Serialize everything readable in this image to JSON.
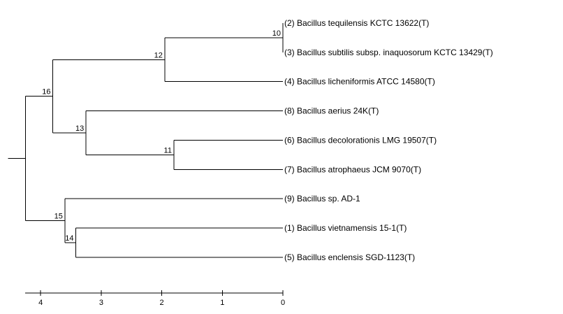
{
  "tree": {
    "leaves": [
      {
        "id": "2",
        "label": "(2) Bacillus tequilensis KCTC 13622(T)"
      },
      {
        "id": "3",
        "label": "(3) Bacillus subtilis subsp. inaquosorum KCTC 13429(T)"
      },
      {
        "id": "4",
        "label": "(4) Bacillus licheniformis ATCC 14580(T)"
      },
      {
        "id": "8",
        "label": "(8) Bacillus aerius 24K(T)"
      },
      {
        "id": "6",
        "label": "(6) Bacillus decolorationis LMG 19507(T)"
      },
      {
        "id": "7",
        "label": "(7) Bacillus atrophaeus JCM 9070(T)"
      },
      {
        "id": "9",
        "label": "(9) Bacillus sp. AD-1"
      },
      {
        "id": "1",
        "label": "(1) Bacillus vietnamensis 15-1(T)"
      },
      {
        "id": "5",
        "label": "(5) Bacillus enclensis SGD-1123(T)"
      }
    ],
    "nodes": [
      {
        "id": "10",
        "label": "10",
        "height": 0.0,
        "children": [
          "2",
          "3"
        ]
      },
      {
        "id": "12",
        "label": "12",
        "height": 1.95,
        "children": [
          "10",
          "4"
        ]
      },
      {
        "id": "11",
        "label": "11",
        "height": 1.8,
        "children": [
          "6",
          "7"
        ]
      },
      {
        "id": "13",
        "label": "13",
        "height": 3.25,
        "children": [
          "8",
          "11"
        ]
      },
      {
        "id": "16",
        "label": "16",
        "height": 3.8,
        "children": [
          "12",
          "13"
        ]
      },
      {
        "id": "14",
        "label": "14",
        "height": 3.42,
        "children": [
          "1",
          "5"
        ]
      },
      {
        "id": "15",
        "label": "15",
        "height": 3.6,
        "children": [
          "9",
          "14"
        ]
      }
    ],
    "root": {
      "height": 4.25,
      "children": [
        "16",
        "15"
      ]
    }
  },
  "scale": {
    "ticks": [
      {
        "value": 4,
        "label": "4"
      },
      {
        "value": 3,
        "label": "3"
      },
      {
        "value": 2,
        "label": "2"
      },
      {
        "value": 1,
        "label": "1"
      },
      {
        "value": 0,
        "label": "0"
      }
    ]
  }
}
